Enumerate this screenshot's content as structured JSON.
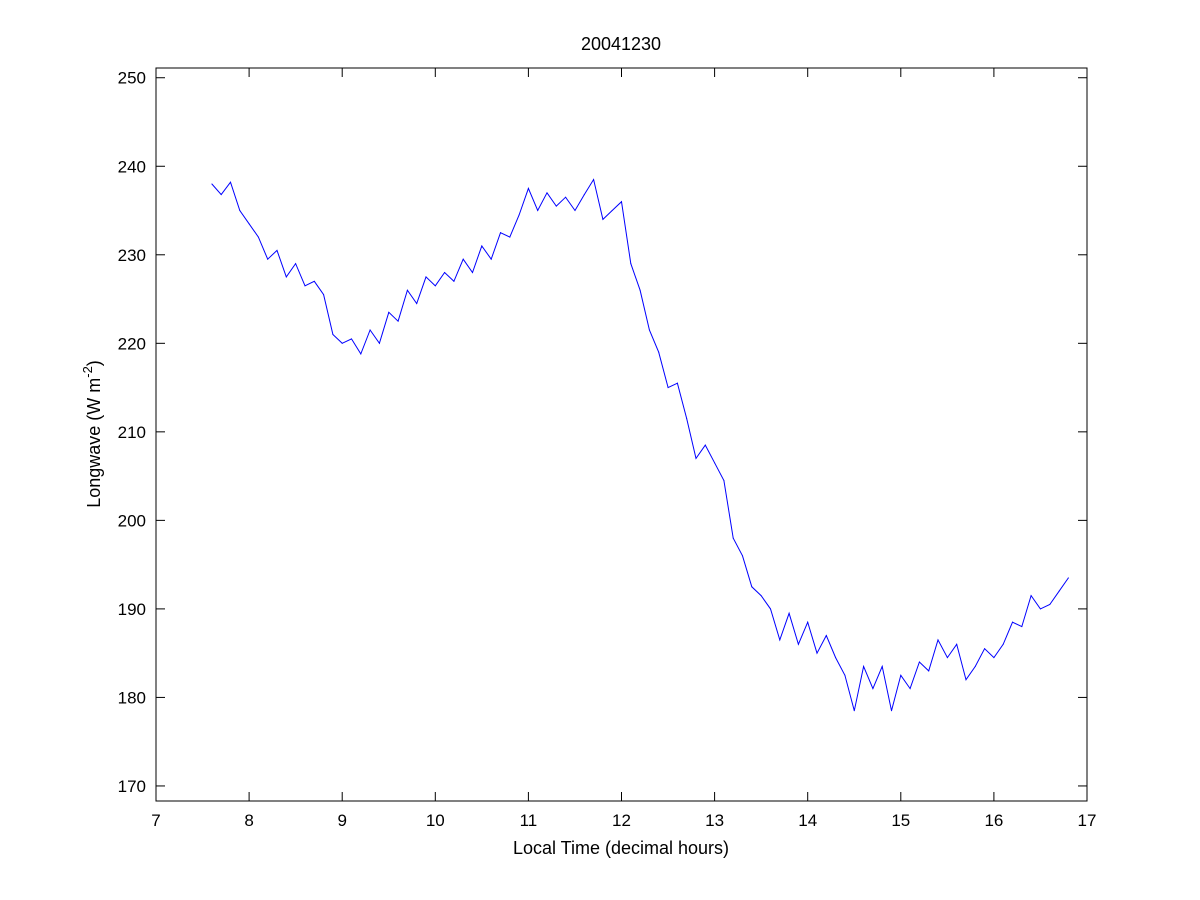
{
  "chart_data": {
    "type": "line",
    "title": "20041230",
    "xlabel": "Local Time (decimal hours)",
    "ylabel_main": "Longwave (W m",
    "ylabel_sup": "-2",
    "ylabel_end": ")",
    "xlim": [
      7,
      17
    ],
    "ylim": [
      168.3,
      251.1
    ],
    "xticks": [
      7,
      8,
      9,
      10,
      11,
      12,
      13,
      14,
      15,
      16,
      17
    ],
    "yticks": [
      170,
      180,
      190,
      200,
      210,
      220,
      230,
      240,
      250
    ],
    "grid": false,
    "series": [
      {
        "name": "Longwave",
        "color": "#0000ff",
        "x_start": 7.6,
        "x_step": 0.1,
        "values": [
          238,
          236.8,
          238.2,
          235,
          233.5,
          232,
          229.5,
          230.5,
          227.5,
          229,
          226.5,
          227,
          225.5,
          221,
          220,
          220.5,
          218.8,
          221.5,
          220,
          223.5,
          222.5,
          226,
          224.5,
          227.5,
          226.5,
          228,
          227,
          229.5,
          228,
          231,
          229.5,
          232.5,
          232,
          234.5,
          237.5,
          235,
          237,
          235.5,
          236.5,
          235,
          236.8,
          238.5,
          234,
          235,
          236,
          229,
          226,
          221.5,
          219,
          215,
          215.5,
          211.5,
          207,
          208.5,
          206.5,
          204.5,
          198,
          196,
          192.5,
          191.5,
          190,
          186.5,
          189.5,
          186,
          188.5,
          185,
          187,
          184.5,
          182.5,
          178.5,
          183.5,
          181,
          183.5,
          178.5,
          182.5,
          181,
          184,
          183,
          186.5,
          184.5,
          186,
          182,
          183.5,
          185.5,
          184.5,
          186,
          188.5,
          188,
          191.5,
          190,
          190.5,
          192,
          193.5
        ]
      }
    ]
  }
}
